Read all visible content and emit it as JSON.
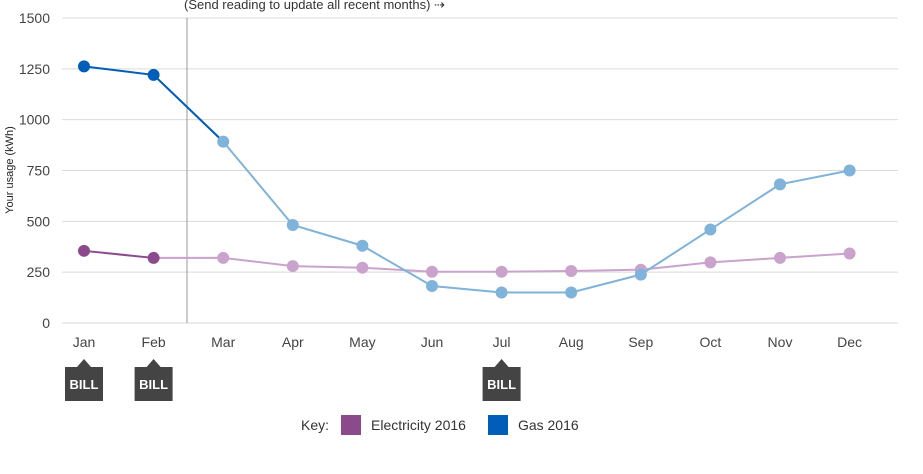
{
  "chart_data": {
    "type": "line",
    "title": "",
    "xlabel": "",
    "ylabel": "Your usage (kWh)",
    "ylim": [
      0,
      1500
    ],
    "yticks": [
      0,
      250,
      500,
      750,
      1000,
      1250,
      1500
    ],
    "categories": [
      "Jan",
      "Feb",
      "Mar",
      "Apr",
      "May",
      "Jun",
      "Jul",
      "Aug",
      "Sep",
      "Oct",
      "Nov",
      "Dec"
    ],
    "grid": true,
    "series": [
      {
        "name": "Electricity 2016",
        "color": "#8b4a8c",
        "estimate_color": "#c9a3cb",
        "values": [
          355,
          320,
          320,
          280,
          272,
          252,
          252,
          256,
          262,
          298,
          320,
          342
        ]
      },
      {
        "name": "Gas 2016",
        "color": "#005eb8",
        "estimate_color": "#7fb3da",
        "values": [
          1262,
          1220,
          892,
          482,
          380,
          182,
          150,
          150,
          238,
          460,
          682,
          750
        ]
      }
    ],
    "actual_months": [
      "Jan",
      "Feb"
    ],
    "annotation": "(Send reading to update all recent months)  ⇢",
    "bill_markers": [
      {
        "month": "Jan",
        "label": "BILL"
      },
      {
        "month": "Feb",
        "label": "BILL"
      },
      {
        "month": "Jul",
        "label": "BILL"
      }
    ],
    "legend": {
      "title": "Key:",
      "placement": "bottom-center"
    }
  },
  "colors": {
    "grid": "#d9d9d9",
    "divider": "#999999",
    "bill_marker": "#444444"
  }
}
